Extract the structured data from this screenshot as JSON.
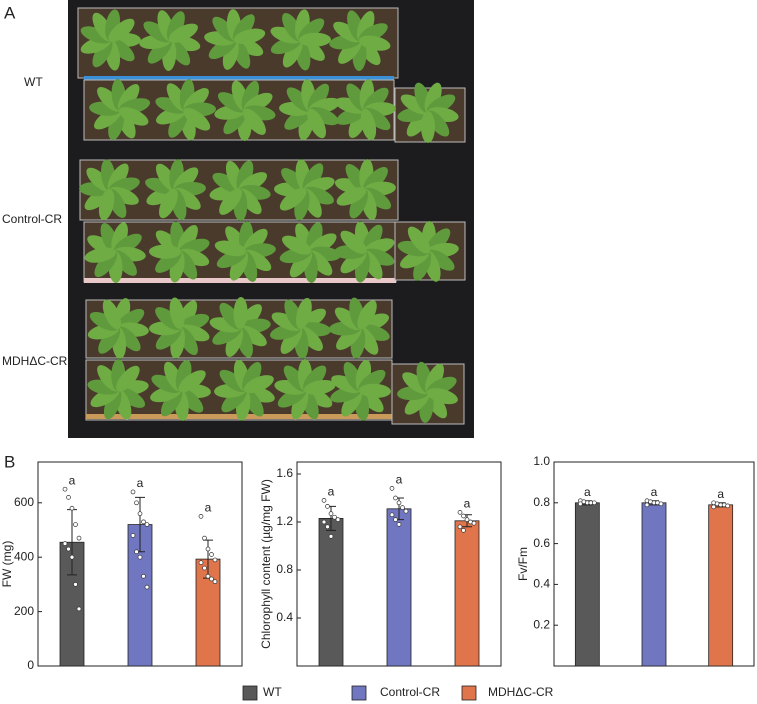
{
  "panels": {
    "a": "A",
    "b": "B"
  },
  "photo": {
    "row_labels": [
      "WT",
      "Control-CR",
      "MDHΔC-CR"
    ]
  },
  "chart_data": [
    {
      "type": "bar",
      "ylabel": "FW (mg)",
      "ylim": [
        0,
        750
      ],
      "yticks": [
        0,
        200,
        400,
        600
      ],
      "series": [
        {
          "name": "WT",
          "color": "#595959",
          "values": [
            455
          ],
          "errors": [
            120
          ],
          "annotation": "a",
          "points": [
            650,
            620,
            580,
            520,
            470,
            450,
            430,
            400,
            300,
            210
          ]
        },
        {
          "name": "Control-CR",
          "color": "#7076c0",
          "values": [
            520
          ],
          "errors": [
            100
          ],
          "annotation": "a",
          "points": [
            640,
            600,
            560,
            530,
            520,
            480,
            420,
            400,
            330,
            290
          ]
        },
        {
          "name": "MDHΔC-CR",
          "color": "#e0744a",
          "values": [
            393
          ],
          "errors": [
            70
          ],
          "annotation": "a",
          "points": [
            550,
            470,
            430,
            410,
            390,
            380,
            360,
            330,
            320,
            310
          ]
        }
      ]
    },
    {
      "type": "bar",
      "ylabel": "Chlorophyll content (µg/mg FW)",
      "ylim": [
        0,
        1.7
      ],
      "yticks": [
        0.4,
        0.8,
        1.2,
        1.6
      ],
      "series": [
        {
          "name": "WT",
          "color": "#595959",
          "values": [
            1.23
          ],
          "errors": [
            0.1
          ],
          "annotation": "a",
          "points": [
            1.38,
            1.33,
            1.27,
            1.24,
            1.22,
            1.2,
            1.16,
            1.08
          ]
        },
        {
          "name": "Control-CR",
          "color": "#7076c0",
          "values": [
            1.31
          ],
          "errors": [
            0.09
          ],
          "annotation": "a",
          "points": [
            1.48,
            1.4,
            1.36,
            1.32,
            1.29,
            1.26,
            1.22,
            1.18
          ]
        },
        {
          "name": "MDHΔC-CR",
          "color": "#e0744a",
          "values": [
            1.21
          ],
          "errors": [
            0.05
          ],
          "annotation": "a",
          "points": [
            1.28,
            1.25,
            1.22,
            1.2,
            1.19,
            1.16,
            1.13
          ]
        }
      ]
    },
    {
      "type": "bar",
      "ylabel": "Fv/Fm",
      "ylim": [
        0,
        1.0
      ],
      "yticks": [
        0.2,
        0.4,
        0.6,
        0.8,
        {
          "value": 1.0,
          "label": "1.0"
        }
      ],
      "series": [
        {
          "name": "WT",
          "color": "#595959",
          "values": [
            0.8
          ],
          "errors": [
            0.01
          ],
          "annotation": "a",
          "points": [
            0.81,
            0.805,
            0.8,
            0.8,
            0.8,
            0.795
          ]
        },
        {
          "name": "Control-CR",
          "color": "#7076c0",
          "values": [
            0.8
          ],
          "errors": [
            0.01
          ],
          "annotation": "a",
          "points": [
            0.81,
            0.805,
            0.8,
            0.8,
            0.795,
            0.79
          ]
        },
        {
          "name": "MDHΔC-CR",
          "color": "#e0744a",
          "values": [
            0.79
          ],
          "errors": [
            0.01
          ],
          "annotation": "a",
          "points": [
            0.8,
            0.795,
            0.79,
            0.79,
            0.785,
            0.78
          ]
        }
      ]
    }
  ]
}
